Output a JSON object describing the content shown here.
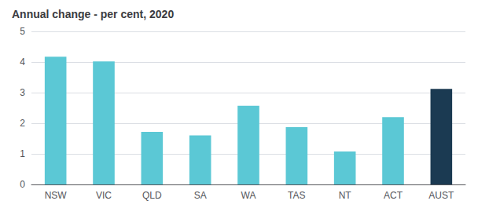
{
  "chart_data": {
    "type": "bar",
    "title": "Annual change - per cent, 2020",
    "categories": [
      "NSW",
      "VIC",
      "QLD",
      "SA",
      "WA",
      "TAS",
      "NT",
      "ACT",
      "AUST"
    ],
    "values": [
      4.17,
      4.02,
      1.72,
      1.6,
      2.57,
      1.87,
      1.08,
      2.2,
      3.12
    ],
    "colors": [
      "#5BC8D5",
      "#5BC8D5",
      "#5BC8D5",
      "#5BC8D5",
      "#5BC8D5",
      "#5BC8D5",
      "#5BC8D5",
      "#5BC8D5",
      "#1B3A52"
    ],
    "ylim": [
      0,
      5
    ],
    "yticks": [
      0,
      1,
      2,
      3,
      4,
      5
    ],
    "grid": true
  }
}
